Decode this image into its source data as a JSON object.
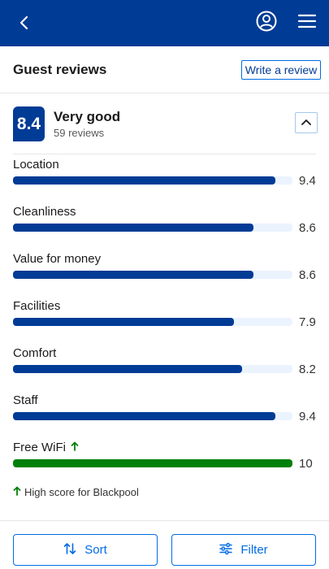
{
  "header": {
    "title": "Guest reviews",
    "write_label": "Write a review"
  },
  "summary": {
    "score": "8.4",
    "rating_label": "Very good",
    "review_count": "59 reviews"
  },
  "categories": [
    {
      "label": "Location",
      "value": "9.4",
      "fraction": 0.94
    },
    {
      "label": "Cleanliness",
      "value": "8.6",
      "fraction": 0.86
    },
    {
      "label": "Value for money",
      "value": "8.6",
      "fraction": 0.86
    },
    {
      "label": "Facilities",
      "value": "7.9",
      "fraction": 0.79
    },
    {
      "label": "Comfort",
      "value": "8.2",
      "fraction": 0.82
    },
    {
      "label": "Staff",
      "value": "9.4",
      "fraction": 0.94
    },
    {
      "label": "Free WiFi",
      "value": "10",
      "fraction": 1.0
    }
  ],
  "note": {
    "text": "High score for Blackpool"
  },
  "footer": {
    "sort_label": "Sort",
    "filter_label": "Filter"
  },
  "colors": {
    "brand_blue": "#003b95",
    "accent_blue": "#006ce4",
    "green": "#008009"
  },
  "icons": [
    "back-arrow-icon",
    "account-icon",
    "hamburger-menu-icon",
    "chevron-up-icon",
    "up-arrow-icon",
    "sort-icon",
    "filter-icon"
  ]
}
